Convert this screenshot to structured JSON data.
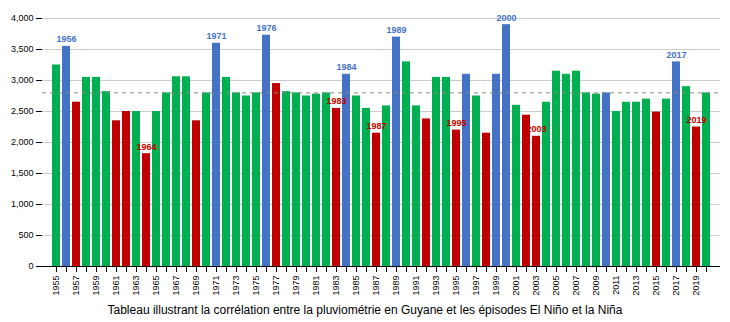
{
  "chart_data": {
    "type": "bar",
    "title": "Tableau illustrant la corrélation entre la pluviométrie en Guyane et les épisodes El Niño et la Niña",
    "x": [
      1955,
      1956,
      1957,
      1958,
      1959,
      1960,
      1961,
      1962,
      1963,
      1964,
      1965,
      1966,
      1967,
      1968,
      1969,
      1970,
      1971,
      1972,
      1973,
      1974,
      1975,
      1976,
      1977,
      1978,
      1979,
      1980,
      1981,
      1982,
      1983,
      1984,
      1985,
      1986,
      1987,
      1988,
      1989,
      1990,
      1991,
      1992,
      1993,
      1994,
      1995,
      1996,
      1997,
      1998,
      1999,
      2000,
      2001,
      2002,
      2003,
      2004,
      2005,
      2006,
      2007,
      2008,
      2009,
      2010,
      2011,
      2012,
      2013,
      2014,
      2015,
      2016,
      2017,
      2018,
      2019,
      2020
    ],
    "values": [
      3250,
      3550,
      2650,
      3050,
      3050,
      2820,
      2350,
      2500,
      2500,
      1820,
      2500,
      2800,
      3060,
      3060,
      2350,
      2800,
      3600,
      3050,
      2800,
      2750,
      2800,
      3730,
      2950,
      2820,
      2800,
      2750,
      2780,
      2800,
      2550,
      3100,
      2750,
      2550,
      2150,
      2590,
      3700,
      3300,
      2590,
      2380,
      3050,
      3050,
      2200,
      3100,
      2750,
      2150,
      3100,
      3900,
      2600,
      2440,
      2100,
      2650,
      3150,
      3100,
      3150,
      2800,
      2780,
      2800,
      2500,
      2650,
      2650,
      2700,
      2490,
      2700,
      3300,
      2900,
      2250,
      2800
    ],
    "colors": [
      "#00B050",
      "#4472C4",
      "#C00000",
      "#00B050",
      "#00B050",
      "#00B050",
      "#C00000",
      "#C00000",
      "#00B050",
      "#C00000",
      "#00B050",
      "#00B050",
      "#00B050",
      "#00B050",
      "#C00000",
      "#00B050",
      "#4472C4",
      "#00B050",
      "#00B050",
      "#00B050",
      "#00B050",
      "#4472C4",
      "#C00000",
      "#00B050",
      "#00B050",
      "#00B050",
      "#00B050",
      "#00B050",
      "#C00000",
      "#4472C4",
      "#00B050",
      "#00B050",
      "#C00000",
      "#00B050",
      "#4472C4",
      "#00B050",
      "#00B050",
      "#C00000",
      "#00B050",
      "#00B050",
      "#C00000",
      "#4472C4",
      "#00B050",
      "#C00000",
      "#4472C4",
      "#4472C4",
      "#00B050",
      "#C00000",
      "#C00000",
      "#00B050",
      "#00B050",
      "#00B050",
      "#00B050",
      "#00B050",
      "#00B050",
      "#4472C4",
      "#00B050",
      "#00B050",
      "#00B050",
      "#00B050",
      "#C00000",
      "#00B050",
      "#4472C4",
      "#00B050",
      "#C00000",
      "#00B050"
    ],
    "xlim": [
      1955,
      2020
    ],
    "xticks": [
      1955,
      1957,
      1959,
      1961,
      1963,
      1965,
      1967,
      1969,
      1971,
      1973,
      1975,
      1977,
      1979,
      1981,
      1983,
      1985,
      1987,
      1989,
      1991,
      1993,
      1995,
      1997,
      1999,
      2001,
      2003,
      2005,
      2007,
      2009,
      2011,
      2013,
      2015,
      2017,
      2019
    ],
    "ylim": [
      0,
      4000
    ],
    "yticks": [
      0,
      500,
      1000,
      1500,
      2000,
      2500,
      3000,
      3500,
      4000
    ],
    "grid": true,
    "average_line": 2800,
    "annotations": [
      {
        "text": "1956",
        "x": 1956,
        "y": 3550,
        "color": "#4472C4"
      },
      {
        "text": "1971",
        "x": 1971,
        "y": 3600,
        "color": "#4472C4"
      },
      {
        "text": "1976",
        "x": 1976,
        "y": 3730,
        "color": "#4472C4"
      },
      {
        "text": "1984",
        "x": 1984,
        "y": 3100,
        "color": "#4472C4"
      },
      {
        "text": "1989",
        "x": 1989,
        "y": 3700,
        "color": "#4472C4"
      },
      {
        "text": "2000",
        "x": 2000,
        "y": 3900,
        "color": "#4472C4"
      },
      {
        "text": "2017",
        "x": 2017,
        "y": 3300,
        "color": "#4472C4"
      },
      {
        "text": "1964",
        "x": 1964,
        "y": 1820,
        "color": "#C00000"
      },
      {
        "text": "1983",
        "x": 1983,
        "y": 2550,
        "color": "#C00000"
      },
      {
        "text": "1987",
        "x": 1987,
        "y": 2150,
        "color": "#C00000"
      },
      {
        "text": "1995",
        "x": 1995,
        "y": 2200,
        "color": "#C00000"
      },
      {
        "text": "2003",
        "x": 2003,
        "y": 2100,
        "color": "#C00000"
      },
      {
        "text": "2019",
        "x": 2019,
        "y": 2250,
        "color": "#C00000"
      }
    ]
  }
}
